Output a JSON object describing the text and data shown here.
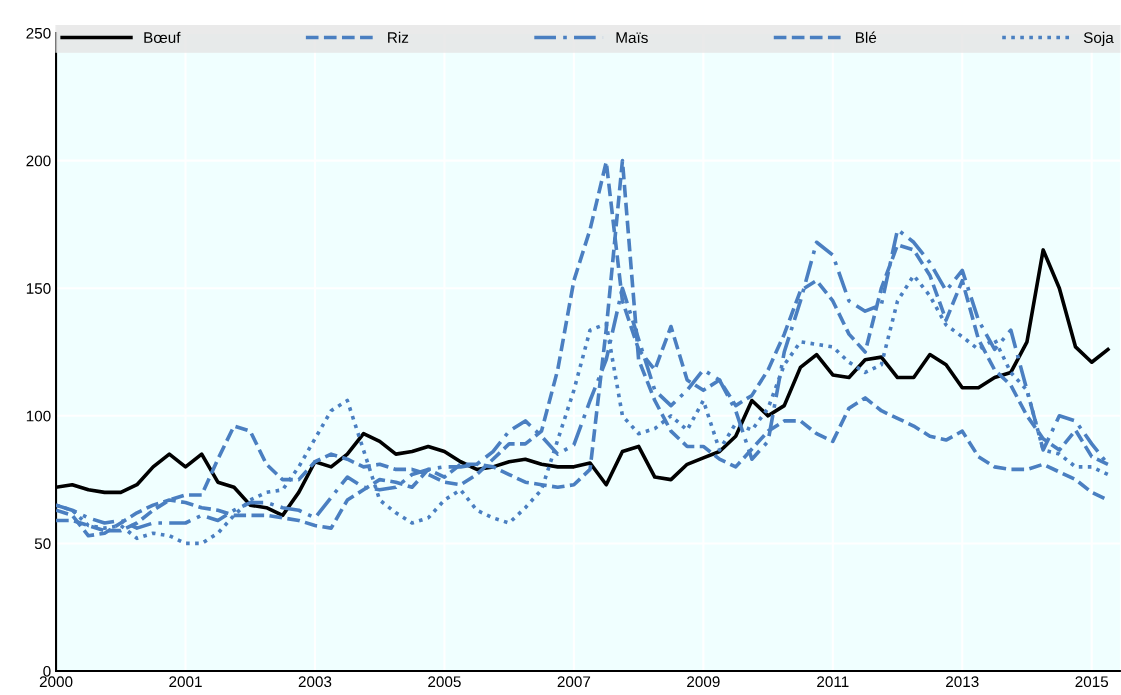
{
  "chart_data": {
    "type": "line",
    "categories": [
      "2000",
      null,
      null,
      null,
      null,
      null,
      null,
      null,
      "2001",
      null,
      null,
      null,
      null,
      null,
      null,
      null,
      "2003",
      null,
      null,
      null,
      null,
      null,
      null,
      null,
      "2005",
      null,
      null,
      null,
      null,
      null,
      null,
      null,
      "2007",
      null,
      null,
      null,
      null,
      null,
      null,
      null,
      "2009",
      null,
      null,
      null,
      null,
      null,
      null,
      null,
      "2011",
      null,
      null,
      null,
      null,
      null,
      null,
      null,
      "2013",
      null,
      null,
      null,
      null,
      null,
      null,
      null,
      "2015",
      null
    ],
    "ylim": [
      0,
      250
    ],
    "yticks": [
      0,
      50,
      100,
      150,
      200,
      250
    ],
    "grid": true,
    "legend": "top",
    "marker": "none",
    "series": [
      {
        "name": "Bœuf",
        "color": "#000000",
        "line_style": "solid",
        "values": [
          72,
          73,
          71,
          70,
          70,
          73,
          80,
          85,
          80,
          85,
          74,
          72,
          65,
          64,
          61,
          70,
          82,
          80,
          85,
          93,
          90,
          85,
          86,
          88,
          86,
          82,
          79,
          80,
          82,
          83,
          81,
          80,
          80,
          81.5,
          73,
          86,
          88,
          76,
          75,
          81,
          83.5,
          86,
          92,
          106,
          100,
          104,
          119,
          124,
          116,
          115,
          122,
          123,
          115,
          115,
          124,
          120,
          111,
          111,
          115,
          117,
          129,
          165,
          150,
          127,
          121,
          126
        ]
      },
      {
        "name": "Riz",
        "color": "#4a7fc1",
        "line_style": "dashed",
        "values": [
          63,
          61,
          53,
          54,
          58,
          62,
          65,
          67,
          66,
          64,
          63,
          61,
          61,
          61,
          60,
          59,
          57,
          56,
          67,
          71,
          75,
          74,
          72,
          79,
          76,
          81,
          81,
          80,
          77,
          74,
          73,
          72,
          73,
          79,
          134,
          200,
          122,
          106,
          94,
          88,
          88,
          83,
          80,
          87,
          94,
          98,
          98,
          93,
          90,
          103,
          107,
          102,
          99,
          96,
          92,
          90.5,
          94,
          84,
          80,
          79,
          79,
          81,
          78,
          75,
          70,
          67
        ]
      },
      {
        "name": "Maïs",
        "color": "#4a7fc1",
        "line_style": "dashdot",
        "values": [
          65,
          63,
          60,
          58,
          59,
          56,
          58,
          58,
          58,
          61,
          59,
          63,
          66,
          66,
          64,
          63,
          60,
          68,
          76,
          72,
          71,
          72,
          77,
          79,
          80,
          80,
          81,
          86,
          94,
          98,
          92,
          85,
          88.6,
          106,
          122,
          150,
          130,
          110,
          104,
          110,
          118,
          114,
          102,
          83,
          90,
          125,
          145,
          168,
          163,
          145,
          141,
          143.5,
          173,
          168,
          160,
          149,
          157,
          137.5,
          126,
          133.6,
          110,
          86.6,
          100,
          98,
          89,
          81
        ]
      },
      {
        "name": "Blé",
        "color": "#4a7fc1",
        "line_style": "dashed",
        "values": [
          59,
          59,
          57,
          55,
          55,
          58,
          63,
          67,
          69,
          69,
          83,
          96,
          94,
          81,
          75,
          75,
          82,
          85,
          83,
          80,
          81,
          79,
          79,
          77,
          74,
          73,
          77,
          83,
          89,
          89,
          94,
          118,
          153,
          173,
          199.5,
          145,
          126,
          118,
          135,
          114,
          110,
          114,
          104,
          108,
          118,
          132,
          149,
          153,
          145,
          132,
          125,
          150,
          167,
          165,
          155,
          137.5,
          153,
          130,
          118,
          112,
          100,
          91,
          86.6,
          94.4,
          84,
          81
        ]
      },
      {
        "name": "Soja",
        "color": "#4a7fc1",
        "line_style": "dotted",
        "values": [
          65,
          63,
          57,
          56,
          57,
          52,
          54,
          53,
          50,
          50,
          54,
          61,
          67,
          70,
          71,
          80,
          91,
          102,
          106,
          86.6,
          67,
          62,
          58,
          60,
          67,
          71,
          63,
          60,
          58,
          64,
          71,
          90.5,
          110,
          133.6,
          136,
          100,
          93,
          95,
          100,
          94.4,
          106,
          86.6,
          97,
          94.4,
          103,
          120,
          129,
          128,
          127,
          121,
          117,
          120,
          145,
          155,
          147,
          135.6,
          131,
          126,
          130,
          117,
          110,
          86.6,
          85,
          80,
          80,
          77
        ]
      }
    ]
  }
}
